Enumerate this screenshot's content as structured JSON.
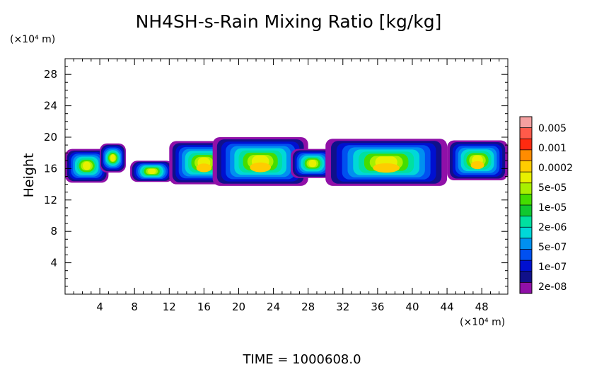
{
  "chart_data": {
    "type": "heatmap",
    "title": "NH4SH-s-Rain Mixing Ratio [kg/kg]",
    "ylabel": "Height",
    "xlabel": "",
    "x_unit": "(×10⁴ m)",
    "y_unit": "(×10⁴ m)",
    "xlim": [
      0,
      51
    ],
    "ylim": [
      0,
      30
    ],
    "xticks": [
      4,
      8,
      12,
      16,
      20,
      24,
      28,
      32,
      36,
      40,
      44,
      48
    ],
    "yticks": [
      4,
      8,
      12,
      16,
      20,
      24,
      28
    ],
    "colorbar": {
      "labels": [
        "0.005",
        "0.001",
        "0.0002",
        "5e-05",
        "1e-05",
        "2e-06",
        "5e-07",
        "1e-07",
        "2e-08"
      ],
      "colors": [
        "#f4a0a0",
        "#ff5a4a",
        "#ff2a10",
        "#ff8c00",
        "#ffcc00",
        "#e8f000",
        "#a8f000",
        "#44dd00",
        "#10c830",
        "#00e0a0",
        "#00d8d8",
        "#0090f0",
        "#0050f0",
        "#0010d0",
        "#10108a",
        "#9010a8"
      ]
    },
    "clouds": [
      {
        "x": [
          0,
          5
        ],
        "y_bottom": 14.2,
        "y_top": 18.5
      },
      {
        "x": [
          4,
          7
        ],
        "y_bottom": 15.5,
        "y_top": 19.2
      },
      {
        "x": [
          7.5,
          12.5
        ],
        "y_bottom": 14.3,
        "y_top": 17.0
      },
      {
        "x": [
          12,
          20
        ],
        "y_bottom": 14.0,
        "y_top": 19.5
      },
      {
        "x": [
          17,
          28
        ],
        "y_bottom": 13.8,
        "y_top": 20.0
      },
      {
        "x": [
          26,
          31
        ],
        "y_bottom": 14.8,
        "y_top": 18.5
      },
      {
        "x": [
          30,
          44
        ],
        "y_bottom": 13.8,
        "y_top": 19.8
      },
      {
        "x": [
          44,
          51
        ],
        "y_bottom": 14.5,
        "y_top": 19.6
      }
    ]
  },
  "footer": {
    "time_text": "TIME  =  1000608.0"
  }
}
